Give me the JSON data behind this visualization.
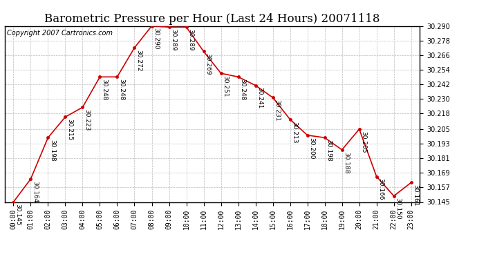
{
  "title": "Barometric Pressure per Hour (Last 24 Hours) 20071118",
  "copyright": "Copyright 2007 Cartronics.com",
  "hours": [
    "00:00",
    "01:00",
    "02:00",
    "03:00",
    "04:00",
    "05:00",
    "06:00",
    "07:00",
    "08:00",
    "09:00",
    "10:00",
    "11:00",
    "12:00",
    "13:00",
    "14:00",
    "15:00",
    "16:00",
    "17:00",
    "18:00",
    "19:00",
    "20:00",
    "21:00",
    "22:00",
    "23:00"
  ],
  "values": [
    30.145,
    30.164,
    30.198,
    30.215,
    30.223,
    30.248,
    30.248,
    30.272,
    30.29,
    30.289,
    30.289,
    30.269,
    30.251,
    30.248,
    30.241,
    30.231,
    30.213,
    30.2,
    30.198,
    30.188,
    30.205,
    30.166,
    30.15,
    30.161
  ],
  "line_color": "#cc0000",
  "marker_color": "#cc0000",
  "background_color": "#ffffff",
  "grid_color": "#bbbbbb",
  "ylim_min": 30.145,
  "ylim_max": 30.29,
  "yticks": [
    30.145,
    30.157,
    30.169,
    30.181,
    30.193,
    30.205,
    30.218,
    30.23,
    30.242,
    30.254,
    30.266,
    30.278,
    30.29
  ],
  "title_fontsize": 12,
  "copyright_fontsize": 7,
  "label_fontsize": 6.5
}
